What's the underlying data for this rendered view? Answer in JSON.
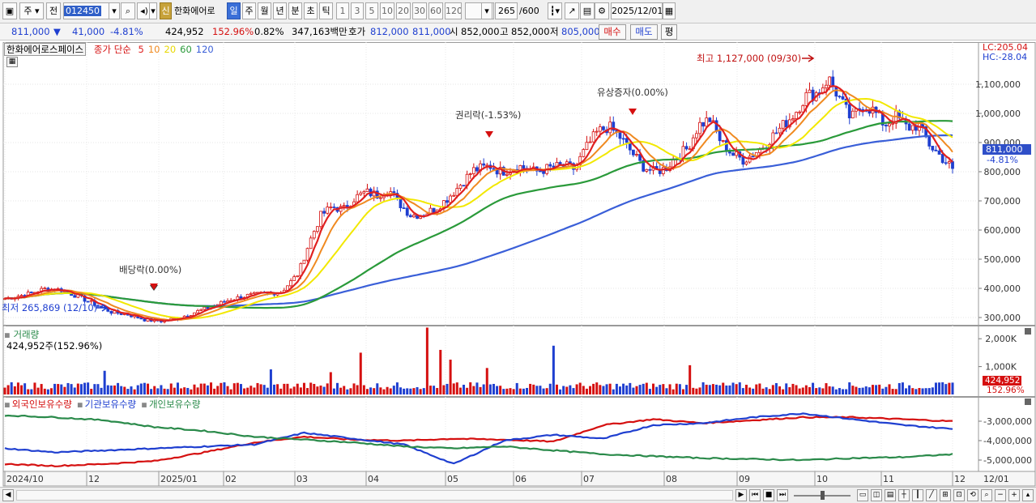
{
  "toolbar": {
    "market": "주",
    "prev": "전",
    "code": "012450",
    "badge_sin": "신",
    "stock_name": "한화에어로",
    "periods": [
      "일",
      "주",
      "월",
      "년",
      "분",
      "초",
      "틱"
    ],
    "active_period": "일",
    "intervals": [
      "1",
      "3",
      "5",
      "10",
      "20",
      "30",
      "60",
      "120"
    ],
    "count": "265",
    "count_total": "/600",
    "date": "2025/12/01"
  },
  "quote": {
    "price": "811,000",
    "arrow": "▼",
    "change": "41,000",
    "change_pct": "-4.81%",
    "volume": "424,952",
    "vol_ratio": "152.96%",
    "turnover": "0.82%",
    "amount": "347,163백만",
    "hoga_label": "호가",
    "ask": "812,000",
    "bid": "811,000",
    "open_label": "시",
    "open": "852,000",
    "high_label": "고",
    "high": "852,000",
    "low_label": "저",
    "low": "805,000",
    "buy": "매수",
    "sell": "매도",
    "eval": "평"
  },
  "price_panel": {
    "stock_tag": "한화에어로스페이스",
    "ma_title": "종가 단순",
    "ma_periods": [
      {
        "label": "5",
        "color": "#e02020"
      },
      {
        "label": "10",
        "color": "#f08a20"
      },
      {
        "label": "20",
        "color": "#e8d800"
      },
      {
        "label": "60",
        "color": "#2a9a3a"
      },
      {
        "label": "120",
        "color": "#3a5fd8"
      }
    ],
    "lc": "LC:205.04",
    "hc": "HC:-28.04",
    "annotations": {
      "high": "최고 1,127,000 (09/30)",
      "low": "최저 265,869 (12/10)",
      "dividend": "배당락(0.00%)",
      "rights": "권리락(-1.53%)",
      "capital": "유상증자(0.00%)"
    },
    "y_ticks": [
      "1,100,000",
      "1,000,000",
      "900,000",
      "800,000",
      "700,000",
      "600,000",
      "500,000",
      "400,000",
      "300,000"
    ],
    "current_price": "811,000",
    "current_pct": "-4.81%"
  },
  "volume_panel": {
    "title": "거래량",
    "info": "424,952주(152.96%)",
    "y_ticks": [
      "2,000K",
      "1,000K"
    ],
    "current": "424,952",
    "current_pct": "152.96%"
  },
  "holding_panel": {
    "legends": [
      {
        "label": "외국인보유수량",
        "color": "#d51010"
      },
      {
        "label": "기관보유수량",
        "color": "#1f3fd0"
      },
      {
        "label": "개인보유수량",
        "color": "#2a8a4a"
      }
    ],
    "y_ticks": [
      "-3,000,000",
      "-4,000,000",
      "-5,000,000"
    ]
  },
  "x_axis": {
    "labels": [
      "2024/10",
      "12",
      "2025/01",
      "02",
      "03",
      "04",
      "05",
      "06",
      "07",
      "08",
      "09",
      "10",
      "11",
      "12"
    ],
    "right_label": "12/01"
  },
  "colors": {
    "up": "#d51010",
    "down": "#1f3fd0",
    "ma5": "#e02020",
    "ma10": "#f08a20",
    "ma20": "#f2e800",
    "ma60": "#2a9a3a",
    "ma120": "#3a5fd8"
  }
}
